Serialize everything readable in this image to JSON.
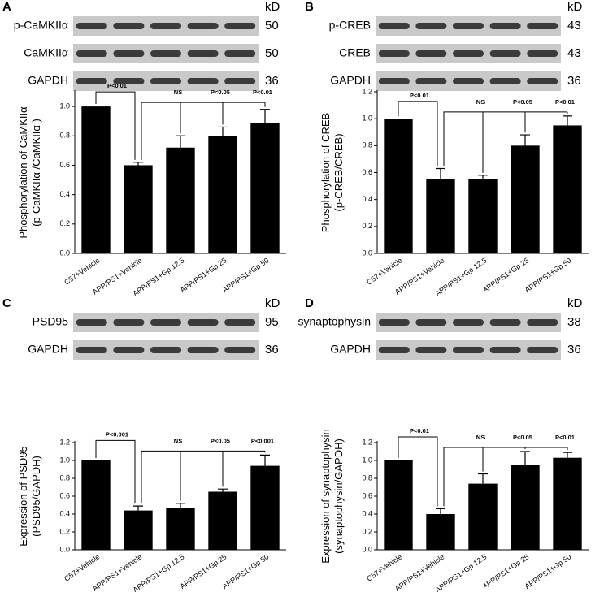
{
  "chart_data": [
    {
      "type": "bar",
      "panel": "A",
      "kd_unit": "kD",
      "blots": [
        {
          "label": "p-CaMKIIα",
          "kd": 50
        },
        {
          "label": "CaMKIIα",
          "kd": 50
        },
        {
          "label": "GAPDH",
          "kd": 36
        }
      ],
      "y_label": [
        "Phosphorylation of CaMKIIα",
        "(p-CaMKIIα /CaMKIIα )"
      ],
      "categories": [
        "C57+Vehicle",
        "APP/PS1+Vehicle",
        "APP/PS1+Gp 12.5",
        "APP/PS1+Gp 25",
        "APP/PS1+Gp 50"
      ],
      "values": [
        1.0,
        0.6,
        0.72,
        0.8,
        0.89
      ],
      "errors": [
        null,
        0.02,
        0.08,
        0.06,
        0.09
      ],
      "color": "#000000",
      "ylim": [
        0,
        1.1
      ],
      "yticks": [
        {
          "value": 0,
          "label": "0.0"
        },
        0.2,
        0.4,
        0.6,
        0.8,
        {
          "value": 1,
          "label": "1.0"
        }
      ],
      "annotations": [
        "P<0.01",
        "NS",
        "P<0.05",
        "P<0.01"
      ]
    },
    {
      "type": "bar",
      "panel": "B",
      "kd_unit": "kD",
      "blots": [
        {
          "label": "p-CREB",
          "kd": 43
        },
        {
          "label": "CREB",
          "kd": 43
        },
        {
          "label": "GAPDH",
          "kd": 36
        }
      ],
      "y_label": [
        "Phosphorylation of CREB",
        "(p-CREB/CREB)"
      ],
      "categories": [
        "C57+Vehicle",
        "APP/PS1+Vehicle",
        "APP/PS1+Gp 12.5",
        "APP/PS1+Gp 25",
        "APP/PS1+Gp 50"
      ],
      "values": [
        1.0,
        0.55,
        0.55,
        0.8,
        0.95
      ],
      "errors": [
        null,
        0.08,
        0.03,
        0.08,
        0.07
      ],
      "color": "#000000",
      "ylim": [
        0,
        1.2
      ],
      "yticks": [
        {
          "value": 0,
          "label": "0.0"
        },
        0.2,
        0.4,
        0.6,
        0.8,
        {
          "value": 1,
          "label": "1.0"
        },
        1.2
      ],
      "annotations": [
        "P<0.01",
        "NS",
        "P<0.05",
        "P<0.01"
      ]
    },
    {
      "type": "bar",
      "panel": "C",
      "kd_unit": "kD",
      "blots": [
        {
          "label": "PSD95",
          "kd": 95
        },
        {
          "label": "GAPDH",
          "kd": 36
        }
      ],
      "y_label": [
        "Expression of PSD95",
        "(PSD95/GAPDH)"
      ],
      "categories": [
        "C57+Vehicle",
        "APP/PS1+Vehicle",
        "APP/PS1+Gp 12.5",
        "APP/PS1+Gp 25",
        "APP/PS1+Gp 50"
      ],
      "values": [
        1.0,
        0.44,
        0.47,
        0.65,
        0.94
      ],
      "errors": [
        null,
        0.05,
        0.05,
        0.03,
        0.12
      ],
      "color": "#000000",
      "ylim": [
        0,
        1.2
      ],
      "yticks": [
        {
          "value": 0,
          "label": "0.0"
        },
        0.2,
        0.4,
        0.6,
        0.8,
        {
          "value": 1,
          "label": "1.0"
        },
        1.2
      ],
      "annotations": [
        "P<0.001",
        "NS",
        "P<0.05",
        "P<0.001"
      ]
    },
    {
      "type": "bar",
      "panel": "D",
      "kd_unit": "kD",
      "blots": [
        {
          "label": "synaptophysin",
          "kd": 38
        },
        {
          "label": "GAPDH",
          "kd": 36
        }
      ],
      "y_label": [
        "Expression of synaptophysin",
        "(synaptophysin/GAPDH)"
      ],
      "categories": [
        "C57+Vehicle",
        "APP/PS1+Vehicle",
        "APP/PS1+Gp 12.5",
        "APP/PS1+Gp 25",
        "APP/PS1+Gp 50"
      ],
      "values": [
        1.0,
        0.4,
        0.74,
        0.95,
        1.03
      ],
      "errors": [
        null,
        0.06,
        0.11,
        0.15,
        0.06
      ],
      "color": "#000000",
      "ylim": [
        0,
        1.2
      ],
      "yticks": [
        {
          "value": 0,
          "label": "0.0"
        },
        0.2,
        0.4,
        0.6,
        0.8,
        {
          "value": 1,
          "label": "1.0"
        },
        1.2
      ],
      "annotations": [
        "P<0.01",
        "NS",
        "P<0.05",
        "P<0.01"
      ]
    }
  ]
}
